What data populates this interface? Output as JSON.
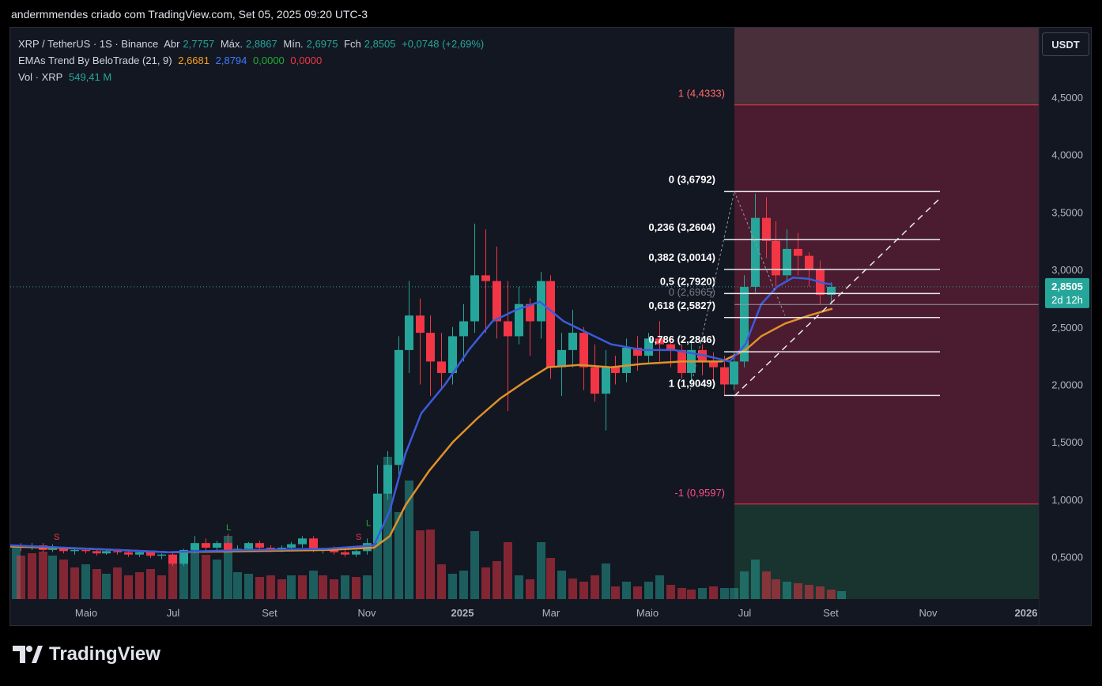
{
  "header": {
    "title": "andermmendes criado com TradingView.com, Set 05, 2025 09:20 UTC-3"
  },
  "legend": {
    "symbol": "XRP / TetherUS · 1S · Binance",
    "open_label": "Abr",
    "open": "2,7757",
    "high_label": "Máx.",
    "high": "2,8867",
    "low_label": "Mín.",
    "low": "2,6975",
    "close_label": "Fch",
    "close": "2,8505",
    "change": "+0,0748 (+2,69%)",
    "ema_name": "EMAs Trend By BeloTrade (21, 9)",
    "ema_v1": "2,6681",
    "ema_v2": "2,8794",
    "ema_v3": "0,0000",
    "ema_v4": "0,0000",
    "vol_label": "Vol · XRP",
    "vol": "549,41 M"
  },
  "currency_button": "USDT",
  "price_axis": [
    "4,5000",
    "4,0000",
    "3,5000",
    "3,0000",
    "2,5000",
    "2,0000",
    "1,5000",
    "1,0000",
    "0,5000"
  ],
  "price_axis_values": [
    4.5,
    4.0,
    3.5,
    3.0,
    2.5,
    2.0,
    1.5,
    1.0,
    0.5
  ],
  "time_axis": [
    "Maio",
    "Jul",
    "Set",
    "Nov",
    "2025",
    "Mar",
    "Maio",
    "Jul",
    "Set",
    "Nov",
    "2026"
  ],
  "current_price_tag": {
    "price": "2,8505",
    "countdown": "2d 12h",
    "value": 2.8505
  },
  "fib_levels": [
    {
      "label": "0 (3,6792)",
      "value": 3.6792
    },
    {
      "label": "0,236 (3,2604)",
      "value": 3.2604
    },
    {
      "label": "0,382 (3,0014)",
      "value": 3.0014
    },
    {
      "label": "0,5 (2,7920)",
      "value": 2.792
    },
    {
      "label": "0 (2,6965)",
      "value": 2.6965
    },
    {
      "label": "0,618 (2,5827)",
      "value": 2.5827
    },
    {
      "label": "0,786 (2,2846)",
      "value": 2.2846
    },
    {
      "label": "1 (1,9049)",
      "value": 1.9049
    }
  ],
  "projection_levels": [
    {
      "label": "1 (4,4333)",
      "value": 4.4333
    },
    {
      "label": "-1 (0,9597)",
      "value": 0.9597
    }
  ],
  "signals": [
    "S",
    "L",
    "S",
    "L"
  ],
  "colors": {
    "up": "#26a69a",
    "down": "#f23645",
    "ema_fast": "#3b5bdb",
    "ema_slow": "#e0902a"
  },
  "brand": "TradingView"
}
